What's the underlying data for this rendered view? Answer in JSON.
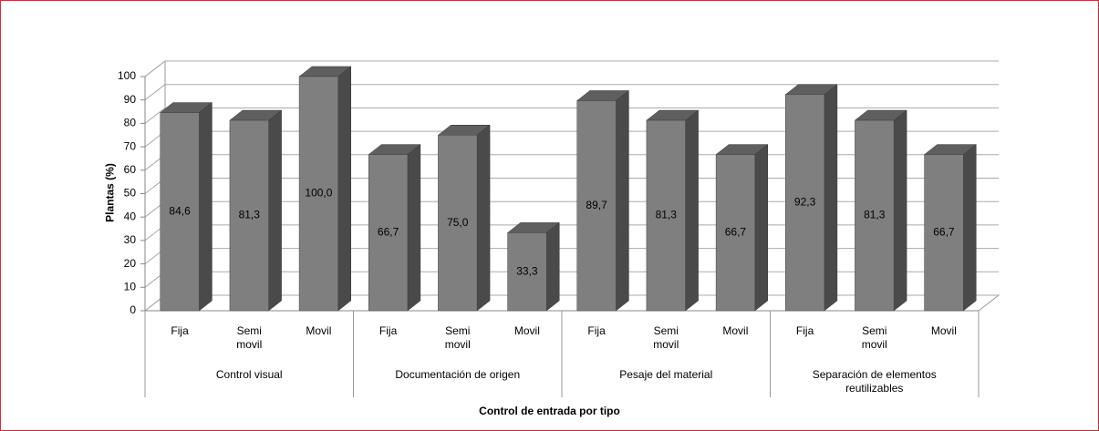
{
  "chart_data": {
    "type": "bar",
    "y_label": "Plantas (%)",
    "x_label": "Control de entrada por tipo",
    "color": "#7f7f7f",
    "ylim": [
      0,
      100
    ],
    "yticks": [
      0,
      10,
      20,
      30,
      40,
      50,
      60,
      70,
      80,
      90,
      100
    ],
    "grid": true,
    "groups": [
      {
        "name": "Control visual",
        "categories": [
          "Fija",
          "Semi movil",
          "Movil"
        ],
        "values": [
          84.6,
          81.3,
          100.0
        ],
        "value_labels": [
          "84,6",
          "81,3",
          "100,0"
        ]
      },
      {
        "name": "Documentación de origen",
        "categories": [
          "Fija",
          "Semi movil",
          "Movil"
        ],
        "values": [
          66.7,
          75.0,
          33.3
        ],
        "value_labels": [
          "66,7",
          "75,0",
          "33,3"
        ]
      },
      {
        "name": "Pesaje del material",
        "categories": [
          "Fija",
          "Semi movil",
          "Movil"
        ],
        "values": [
          89.7,
          81.3,
          66.7
        ],
        "value_labels": [
          "89,7",
          "81,3",
          "66,7"
        ]
      },
      {
        "name": "Separación de elementos reutilizables",
        "categories": [
          "Fija",
          "Semi movil",
          "Movil"
        ],
        "values": [
          92.3,
          81.3,
          66.7
        ],
        "value_labels": [
          "92,3",
          "81,3",
          "66,7"
        ]
      }
    ]
  }
}
